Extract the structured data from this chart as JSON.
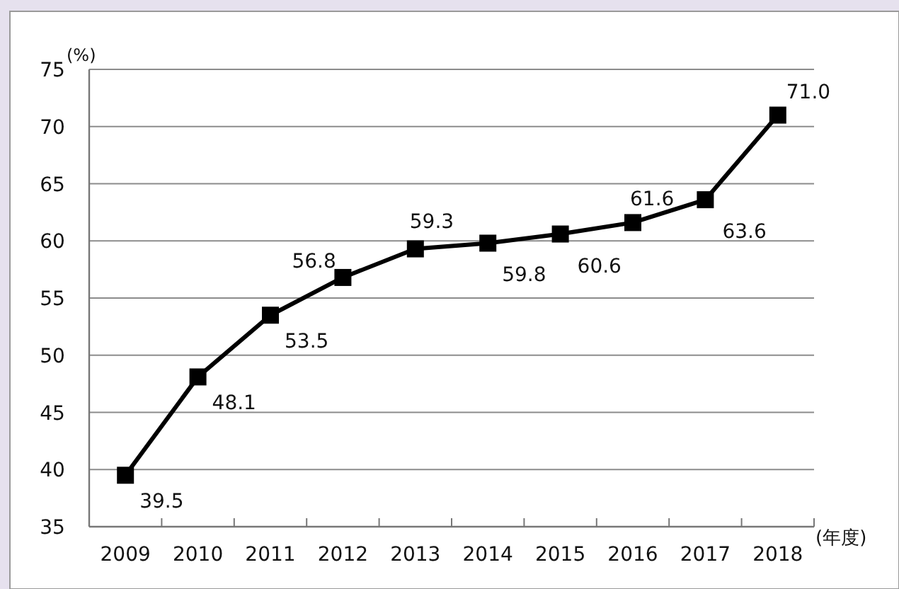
{
  "chart_data": {
    "type": "line",
    "ylabel": "(%)",
    "xlabel": "(年度)",
    "categories": [
      "2009",
      "2010",
      "2011",
      "2012",
      "2013",
      "2014",
      "2015",
      "2016",
      "2017",
      "2018"
    ],
    "series": [
      {
        "color": "#000000",
        "values": [
          39.5,
          48.1,
          53.5,
          56.8,
          59.3,
          59.8,
          60.6,
          61.6,
          63.6,
          71.0
        ],
        "value_labels": [
          "39.5",
          "48.1",
          "53.5",
          "56.8",
          "59.3",
          "59.8",
          "60.6",
          "61.6",
          "63.6",
          "71.0"
        ]
      }
    ],
    "ylim": [
      35,
      75
    ],
    "yticks": [
      35,
      40,
      45,
      50,
      55,
      60,
      65,
      70,
      75
    ],
    "grid": "y",
    "marker": "square",
    "line_style": "solid"
  }
}
